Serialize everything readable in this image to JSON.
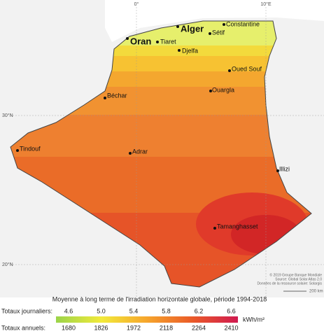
{
  "graticule": {
    "lon": [
      "0°",
      "10°E"
    ],
    "lat": [
      "30°N",
      "20°N"
    ]
  },
  "cities": [
    "Alger",
    "Constantine",
    "Oran",
    "Tiaret",
    "Sétif",
    "Djelfa",
    "Oued Souf",
    "Ouargla",
    "Béchar",
    "Tindouf",
    "Adrar",
    "Illizi",
    "Tamanghasset"
  ],
  "credits": [
    "© 2019 Groupe Banque Mondiale",
    "Source: Global Solar Atlas 2.0",
    "Données de la ressource solaire: Solargis"
  ],
  "scale_bar": "200 km",
  "legend": {
    "title": "Moyenne à long terme de l'irradiation horizontale globale, période 1994-2018",
    "daily_label": "Totaux journaliers:",
    "daily": [
      "4.6",
      "5.0",
      "5.4",
      "5.8",
      "6.2",
      "6.6"
    ],
    "unit": "kWh/m²",
    "annual_label": "Totaux annuels:",
    "annual": [
      "1680",
      "1826",
      "1972",
      "2118",
      "2264",
      "2410"
    ]
  }
}
